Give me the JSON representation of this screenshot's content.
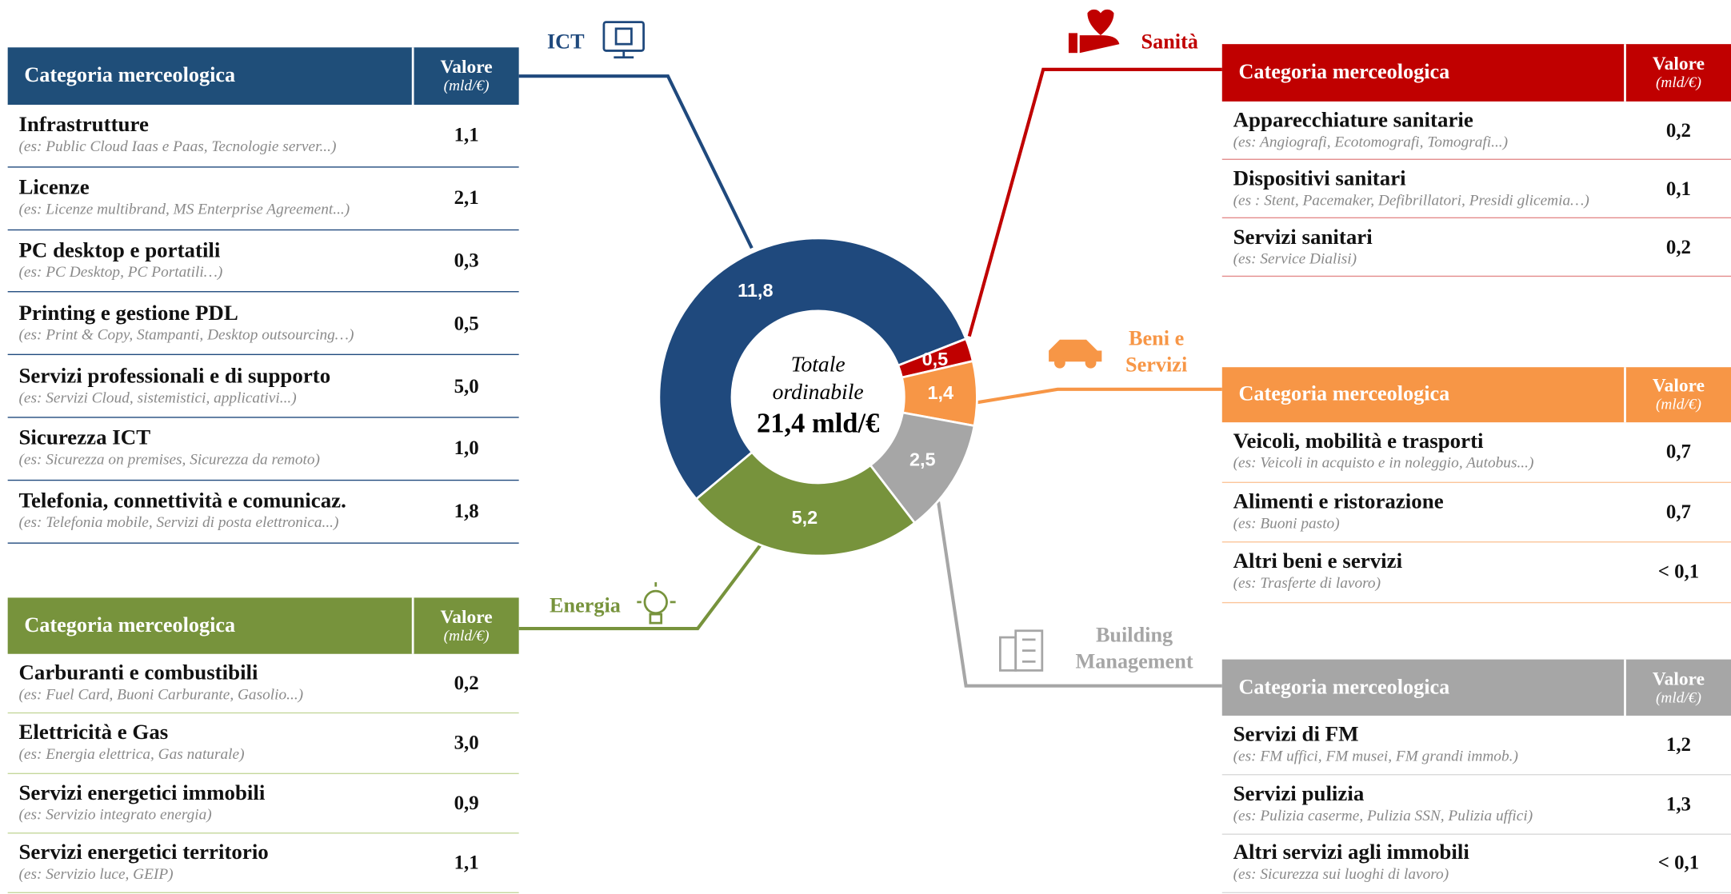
{
  "chart_data": {
    "type": "donut",
    "categories": [
      "ICT",
      "Sanità",
      "Beni e Servizi",
      "Building Management",
      "Energia"
    ],
    "values": [
      11.8,
      0.5,
      1.4,
      2.5,
      5.2
    ],
    "value_labels": [
      "11,8",
      "0,5",
      "1,4",
      "2,5",
      "5,2"
    ],
    "colors": [
      "#1f497d",
      "#c00000",
      "#f79646",
      "#a6a6a6",
      "#77933c"
    ],
    "center_title": "Totale ordinabile",
    "center_value": "21,4 mld/€"
  },
  "tables": [
    {
      "header": {
        "category": "Categoria merceologica",
        "value": "Valore",
        "unit": "(mld/€)"
      },
      "rows": [
        {
          "name": "Infrastrutture",
          "example": "(es: Public Cloud Iaas e Paas, Tecnologie server...)",
          "value": "1,1"
        },
        {
          "name": "Licenze",
          "example": "(es: Licenze multibrand, MS Enterprise Agreement...)",
          "value": "2,1"
        },
        {
          "name": "PC desktop e portatili",
          "example": "(es: PC Desktop, PC Portatili…)",
          "value": "0,3"
        },
        {
          "name": "Printing e gestione PDL",
          "example": "(es: Print & Copy, Stampanti, Desktop outsourcing…)",
          "value": "0,5"
        },
        {
          "name": "Servizi professionali e di supporto",
          "example": "(es: Servizi Cloud, sistemistici, applicativi...)",
          "value": "5,0"
        },
        {
          "name": "Sicurezza ICT",
          "example": "(es: Sicurezza on premises, Sicurezza da remoto)",
          "value": "1,0"
        },
        {
          "name": "Telefonia, connettività e comunicaz.",
          "example": "(es: Telefonia mobile, Servizi di posta elettronica...)",
          "value": "1,8"
        }
      ]
    },
    {
      "header": {
        "category": "Categoria merceologica",
        "value": "Valore",
        "unit": "(mld/€)"
      },
      "rows": [
        {
          "name": "Apparecchiature sanitarie",
          "example": "(es: Angiografi, Ecotomografi, Tomografi...)",
          "value": "0,2"
        },
        {
          "name": "Dispositivi sanitari",
          "example": "(es : Stent, Pacemaker, Defibrillatori, Presidi glicemia…)",
          "value": "0,1"
        },
        {
          "name": "Servizi sanitari",
          "example": "(es: Service Dialisi)",
          "value": "0,2"
        }
      ]
    },
    {
      "header": {
        "category": "Categoria merceologica",
        "value": "Valore",
        "unit": "(mld/€)"
      },
      "rows": [
        {
          "name": "Veicoli, mobilità e trasporti",
          "example": "(es: Veicoli in acquisto e in noleggio, Autobus...)",
          "value": "0,7"
        },
        {
          "name": "Alimenti e ristorazione",
          "example": "(es: Buoni pasto)",
          "value": "0,7"
        },
        {
          "name": "Altri beni e servizi",
          "example": "(es: Trasferte di lavoro)",
          "value": "< 0,1"
        }
      ]
    },
    {
      "header": {
        "category": "Categoria merceologica",
        "value": "Valore",
        "unit": "(mld/€)"
      },
      "rows": [
        {
          "name": "Servizi di FM",
          "example": "(es: FM uffici, FM musei, FM grandi immob.)",
          "value": "1,2"
        },
        {
          "name": "Servizi pulizia",
          "example": "(es: Pulizia caserme, Pulizia SSN, Pulizia uffici)",
          "value": "1,3"
        },
        {
          "name": "Altri servizi agli immobili",
          "example": "(es: Sicurezza sui luoghi di lavoro)",
          "value": "< 0,1"
        }
      ]
    },
    {
      "header": {
        "category": "Categoria merceologica",
        "value": "Valore",
        "unit": "(mld/€)"
      },
      "rows": [
        {
          "name": "Carburanti e combustibili",
          "example": "(es: Fuel Card, Buoni Carburante, Gasolio...)",
          "value": "0,2"
        },
        {
          "name": "Elettricità e Gas",
          "example": "(es: Energia elettrica, Gas naturale)",
          "value": "3,0"
        },
        {
          "name": "Servizi energetici immobili",
          "example": "(es: Servizio integrato energia)",
          "value": "0,9"
        },
        {
          "name": "Servizi energetici territorio",
          "example": "(es: Servizio luce, GEIP)",
          "value": "1,1"
        }
      ]
    }
  ]
}
